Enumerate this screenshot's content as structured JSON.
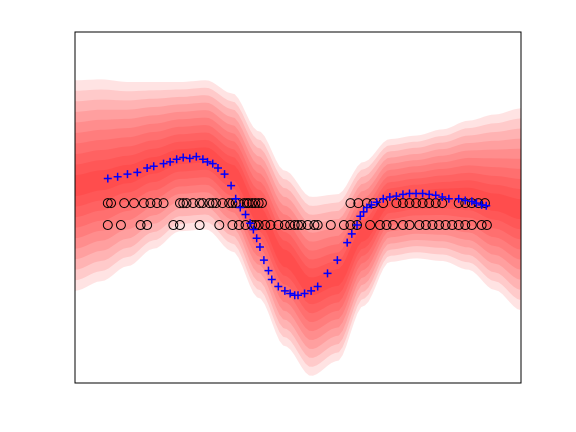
{
  "chart_data": {
    "type": "scatter",
    "title": "",
    "xlabel": "",
    "ylabel": "",
    "axis_ticks_visible": false,
    "grid": false,
    "legend": "none",
    "xlim": [
      -3.4,
      3.4
    ],
    "ylim": [
      -2.0,
      2.0
    ],
    "colors": {
      "band": "#ff0000",
      "crosses": "#0000ff",
      "circles": "#000000",
      "axes": "#000000",
      "background": "#ffffff"
    },
    "band": {
      "description_levels": 10,
      "mean_x": [
        -3.4,
        -3.0,
        -2.6,
        -2.2,
        -1.8,
        -1.4,
        -1.0,
        -0.6,
        -0.2,
        0.2,
        0.6,
        1.0,
        1.4,
        1.8,
        2.2,
        2.6,
        3.0,
        3.4
      ],
      "mean_y": [
        0.25,
        0.31,
        0.38,
        0.48,
        0.58,
        0.6,
        0.4,
        -0.08,
        -0.58,
        -0.9,
        -0.8,
        -0.3,
        0.08,
        0.12,
        0.14,
        0.14,
        0.06,
        -0.02
      ],
      "halfwidth": [
        1.2,
        1.15,
        1.05,
        0.95,
        0.85,
        0.85,
        0.9,
        0.95,
        1.0,
        1.02,
        0.95,
        0.82,
        0.7,
        0.7,
        0.75,
        0.85,
        1.0,
        1.15
      ]
    },
    "series": [
      {
        "marker": "plus",
        "x": [
          -2.9,
          -2.75,
          -2.6,
          -2.45,
          -2.3,
          -2.2,
          -2.05,
          -1.95,
          -1.85,
          -1.75,
          -1.65,
          -1.55,
          -1.45,
          -1.38,
          -1.3,
          -1.22,
          -1.12,
          -1.02,
          -0.95,
          -0.88,
          -0.8,
          -0.73,
          -0.68,
          -0.63,
          -0.58,
          -0.52,
          -0.45,
          -0.4,
          -0.3,
          -0.2,
          -0.12,
          -0.05,
          0.0,
          0.1,
          0.2,
          0.3,
          0.45,
          0.6,
          0.75,
          0.82,
          0.9,
          0.95,
          1.0,
          1.05,
          1.12,
          1.2,
          1.3,
          1.4,
          1.5,
          1.6,
          1.7,
          1.8,
          1.9,
          2.0,
          2.1,
          2.2,
          2.3,
          2.45,
          2.55,
          2.65,
          2.72,
          2.8,
          2.87
        ],
        "y": [
          0.33,
          0.35,
          0.38,
          0.4,
          0.45,
          0.47,
          0.5,
          0.52,
          0.55,
          0.57,
          0.56,
          0.58,
          0.55,
          0.52,
          0.5,
          0.45,
          0.38,
          0.25,
          0.1,
          0.0,
          -0.08,
          -0.18,
          -0.25,
          -0.35,
          -0.45,
          -0.6,
          -0.72,
          -0.82,
          -0.9,
          -0.95,
          -0.98,
          -1.0,
          -1.0,
          -0.98,
          -0.95,
          -0.9,
          -0.75,
          -0.6,
          -0.4,
          -0.3,
          -0.2,
          -0.1,
          -0.05,
          0.0,
          0.03,
          0.06,
          0.1,
          0.12,
          0.13,
          0.15,
          0.16,
          0.16,
          0.16,
          0.15,
          0.14,
          0.12,
          0.1,
          0.1,
          0.08,
          0.07,
          0.05,
          0.03,
          0.02
        ]
      },
      {
        "marker": "circle",
        "x": [
          -2.9,
          -2.85,
          -2.65,
          -2.5,
          -2.35,
          -2.25,
          -2.15,
          -2.05,
          -1.8,
          -1.75,
          -1.7,
          -1.6,
          -1.5,
          -1.45,
          -1.35,
          -1.3,
          -1.25,
          -1.15,
          -1.05,
          -1.0,
          -0.95,
          -0.9,
          -0.82,
          -0.78,
          -0.75,
          -0.7,
          -0.65,
          -0.6,
          -0.55,
          0.8,
          0.92,
          1.05,
          1.15,
          1.3,
          1.5,
          1.6,
          1.7,
          1.8,
          1.9,
          2.0,
          2.1,
          2.2,
          2.45,
          2.55,
          2.65,
          2.75,
          2.85,
          -2.9,
          -2.7,
          -2.4,
          -2.3,
          -1.9,
          -1.8,
          -1.5,
          -1.2,
          -1.0,
          -0.9,
          -0.8,
          -0.7,
          -0.65,
          -0.6,
          -0.5,
          -0.42,
          -0.3,
          -0.2,
          -0.12,
          -0.05,
          0.0,
          0.05,
          0.15,
          0.25,
          0.3,
          0.5,
          0.7,
          0.8,
          0.9,
          1.1,
          1.25,
          1.35,
          1.45,
          1.6,
          1.7,
          1.85,
          1.95,
          2.05,
          2.15,
          2.25,
          2.35,
          2.45,
          2.55,
          2.65,
          2.8,
          2.88
        ],
        "y": [
          0.05,
          0.05,
          0.05,
          0.05,
          0.05,
          0.05,
          0.05,
          0.05,
          0.05,
          0.05,
          0.05,
          0.05,
          0.05,
          0.05,
          0.05,
          0.05,
          0.05,
          0.05,
          0.05,
          0.05,
          0.05,
          0.05,
          0.05,
          0.05,
          0.05,
          0.05,
          0.05,
          0.05,
          0.05,
          0.05,
          0.05,
          0.05,
          0.05,
          0.05,
          0.05,
          0.05,
          0.05,
          0.05,
          0.05,
          0.05,
          0.05,
          0.05,
          0.05,
          0.05,
          0.05,
          0.05,
          0.05,
          -0.2,
          -0.2,
          -0.2,
          -0.2,
          -0.2,
          -0.2,
          -0.2,
          -0.2,
          -0.2,
          -0.2,
          -0.2,
          -0.2,
          -0.2,
          -0.2,
          -0.2,
          -0.2,
          -0.2,
          -0.2,
          -0.2,
          -0.2,
          -0.2,
          -0.2,
          -0.2,
          -0.2,
          -0.2,
          -0.2,
          -0.2,
          -0.2,
          -0.2,
          -0.2,
          -0.2,
          -0.2,
          -0.2,
          -0.2,
          -0.2,
          -0.2,
          -0.2,
          -0.2,
          -0.2,
          -0.2,
          -0.2,
          -0.2,
          -0.2,
          -0.2,
          -0.2,
          -0.2
        ]
      }
    ]
  }
}
